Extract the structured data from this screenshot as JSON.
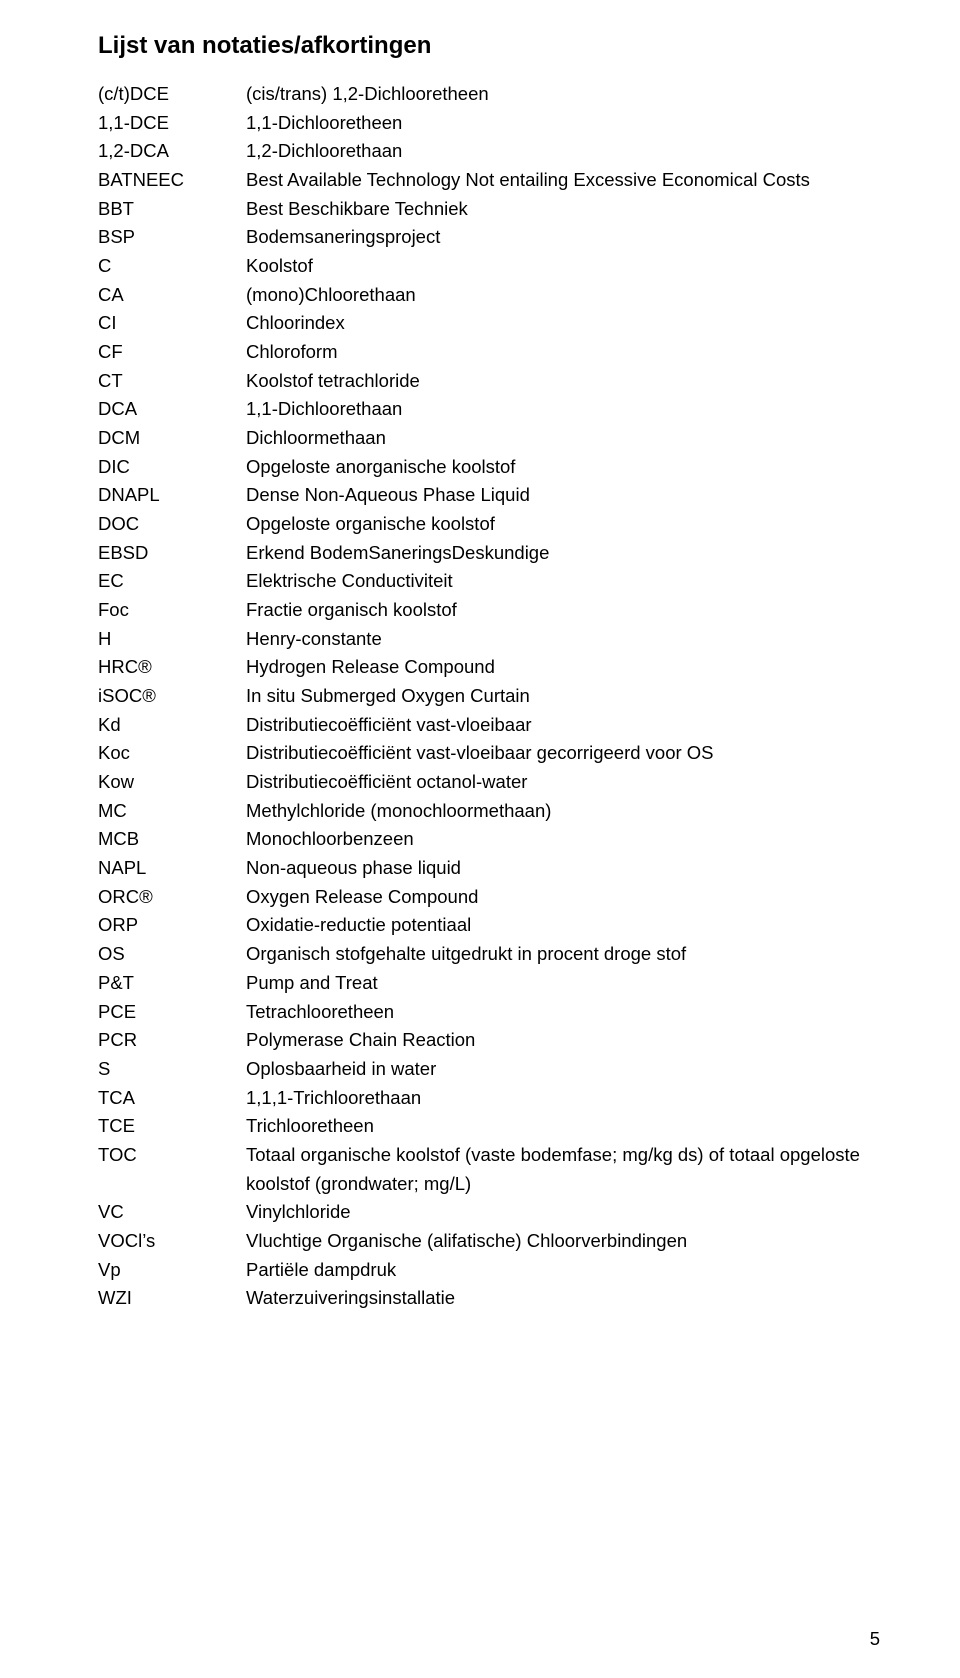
{
  "title": "Lijst van notaties/afkortingen",
  "page_number": "5",
  "entries": [
    {
      "abbr": "(c/t)DCE",
      "def": "(cis/trans) 1,2-Dichlooretheen"
    },
    {
      "abbr": "1,1-DCE",
      "def": "1,1-Dichlooretheen"
    },
    {
      "abbr": "1,2-DCA",
      "def": "1,2-Dichloorethaan"
    },
    {
      "abbr": "BATNEEC",
      "def": "Best Available Technology Not entailing Excessive Economical Costs"
    },
    {
      "abbr": "BBT",
      "def": "Best Beschikbare Techniek"
    },
    {
      "abbr": "BSP",
      "def": "Bodemsaneringsproject"
    },
    {
      "abbr": "C",
      "def": "Koolstof"
    },
    {
      "abbr": "CA",
      "def": "(mono)Chloorethaan"
    },
    {
      "abbr": "CI",
      "def": "Chloorindex"
    },
    {
      "abbr": "CF",
      "def": "Chloroform"
    },
    {
      "abbr": "CT",
      "def": "Koolstof tetrachloride"
    },
    {
      "abbr": "DCA",
      "def": "1,1-Dichloorethaan"
    },
    {
      "abbr": "DCM",
      "def": "Dichloormethaan"
    },
    {
      "abbr": "DIC",
      "def": "Opgeloste anorganische koolstof"
    },
    {
      "abbr": "DNAPL",
      "def": "Dense Non-Aqueous Phase Liquid"
    },
    {
      "abbr": "DOC",
      "def": "Opgeloste organische koolstof"
    },
    {
      "abbr": "EBSD",
      "def": "Erkend BodemSaneringsDeskundige"
    },
    {
      "abbr": "EC",
      "def": "Elektrische Conductiviteit"
    },
    {
      "abbr": "Foc",
      "def": "Fractie organisch koolstof"
    },
    {
      "abbr": "H",
      "def": "Henry-constante"
    },
    {
      "abbr": "HRC®",
      "def": "Hydrogen Release Compound"
    },
    {
      "abbr": "iSOC®",
      "def": "In situ Submerged Oxygen Curtain"
    },
    {
      "abbr": "Kd",
      "def": "Distributiecoëfficiënt vast-vloeibaar"
    },
    {
      "abbr": "Koc",
      "def": "Distributiecoëfficiënt vast-vloeibaar gecorrigeerd voor OS"
    },
    {
      "abbr": "Kow",
      "def": "Distributiecoëfficiënt octanol-water"
    },
    {
      "abbr": "MC",
      "def": "Methylchloride (monochloormethaan)"
    },
    {
      "abbr": "MCB",
      "def": "Monochloorbenzeen"
    },
    {
      "abbr": "NAPL",
      "def": "Non-aqueous phase liquid"
    },
    {
      "abbr": "ORC®",
      "def": "Oxygen Release Compound"
    },
    {
      "abbr": "ORP",
      "def": "Oxidatie-reductie potentiaal"
    },
    {
      "abbr": "OS",
      "def": "Organisch stofgehalte uitgedrukt in procent droge stof"
    },
    {
      "abbr": "P&T",
      "def": "Pump and Treat"
    },
    {
      "abbr": "PCE",
      "def": "Tetrachlooretheen"
    },
    {
      "abbr": "PCR",
      "def": "Polymerase Chain Reaction"
    },
    {
      "abbr": "S",
      "def": "Oplosbaarheid in water"
    },
    {
      "abbr": "TCA",
      "def": "1,1,1-Trichloorethaan"
    },
    {
      "abbr": "TCE",
      "def": "Trichlooretheen"
    },
    {
      "abbr": "TOC",
      "def": "Totaal organische koolstof (vaste bodemfase; mg/kg ds) of totaal opgeloste koolstof (grondwater; mg/L)"
    },
    {
      "abbr": "VC",
      "def": "Vinylchloride"
    },
    {
      "abbr": "VOCl’s",
      "def": "Vluchtige Organische (alifatische) Chloorverbindingen"
    },
    {
      "abbr": "Vp",
      "def": "Partiële dampdruk"
    },
    {
      "abbr": "WZI",
      "def": "Waterzuiveringsinstallatie"
    }
  ]
}
